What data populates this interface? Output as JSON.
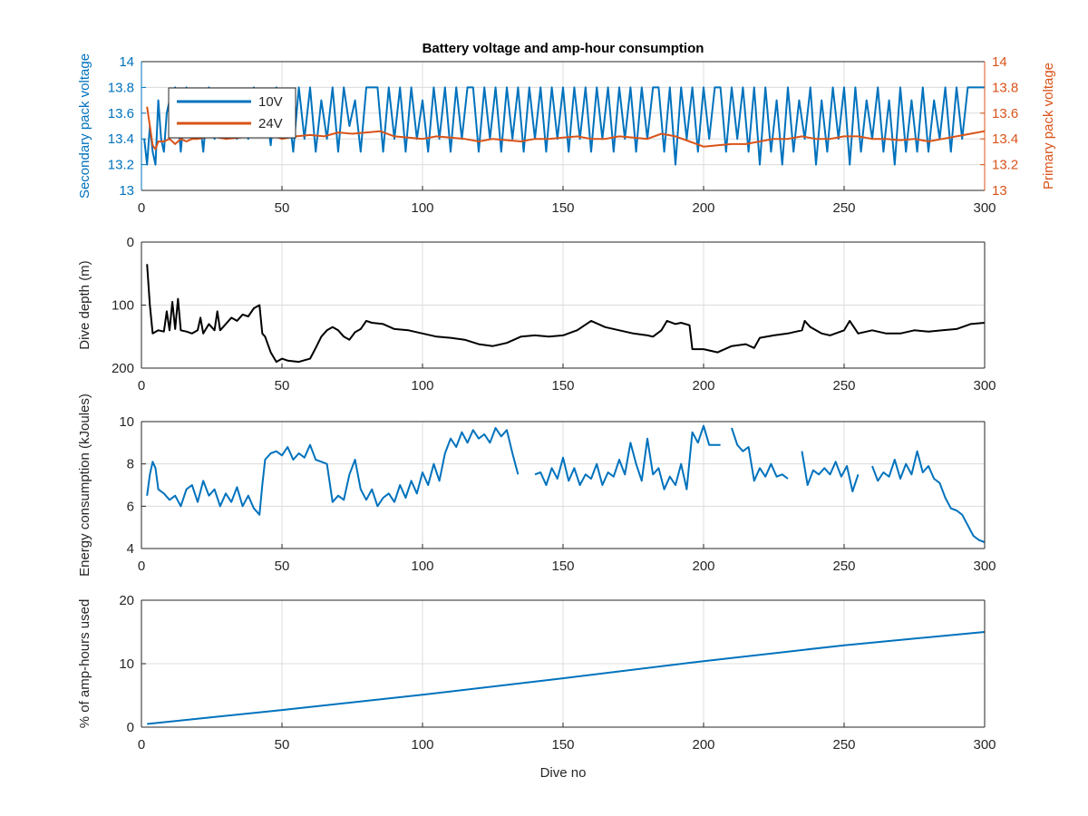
{
  "figure": {
    "title": "Battery voltage and amp-hour consumption"
  },
  "colors": {
    "blue": "#0072BD",
    "orange": "#D95319",
    "black": "#000000",
    "grid": "#dcdcdc"
  },
  "chart_data": [
    {
      "type": "line",
      "title": "Battery voltage and amp-hour consumption",
      "xlim": [
        0,
        300
      ],
      "xticks": [
        "0",
        "50",
        "100",
        "150",
        "200",
        "250",
        "300"
      ],
      "ylabel_left": "Secondary pack voltage",
      "ylabel_right": "Primary pack voltage",
      "ylim_left": [
        13,
        14
      ],
      "ylim_right": [
        13,
        14
      ],
      "yticks_left": [
        "13",
        "13.2",
        "13.4",
        "13.6",
        "13.8",
        "14"
      ],
      "yticks_right": [
        "13",
        "13.2",
        "13.4",
        "13.6",
        "13.8",
        "14"
      ],
      "legend": {
        "placement": "top-left",
        "entries": [
          "10V",
          "24V"
        ]
      },
      "grid": true,
      "series": [
        {
          "name": "10V",
          "axis": "left",
          "color": "#0072BD",
          "x": [
            1,
            2,
            3,
            4,
            5,
            6,
            7,
            8,
            9,
            10,
            12,
            14,
            16,
            18,
            20,
            22,
            24,
            26,
            28,
            30,
            32,
            34,
            36,
            38,
            40,
            42,
            44,
            46,
            48,
            50,
            52,
            54,
            56,
            58,
            60,
            62,
            64,
            66,
            68,
            70,
            72,
            74,
            76,
            78,
            80,
            82,
            84,
            86,
            88,
            90,
            92,
            94,
            96,
            98,
            100,
            102,
            104,
            106,
            108,
            110,
            112,
            114,
            116,
            118,
            120,
            122,
            124,
            126,
            128,
            130,
            132,
            134,
            136,
            138,
            140,
            142,
            144,
            146,
            148,
            150,
            152,
            154,
            156,
            158,
            160,
            162,
            164,
            166,
            168,
            170,
            172,
            174,
            176,
            178,
            180,
            182,
            184,
            186,
            188,
            190,
            192,
            194,
            196,
            198,
            200,
            202,
            204,
            206,
            208,
            210,
            212,
            214,
            216,
            218,
            220,
            222,
            224,
            226,
            228,
            230,
            232,
            234,
            236,
            238,
            240,
            242,
            244,
            246,
            248,
            250,
            252,
            254,
            256,
            258,
            260,
            262,
            264,
            266,
            268,
            270,
            272,
            274,
            276,
            278,
            280,
            282,
            284,
            286,
            288,
            290,
            292,
            294,
            296,
            298,
            300
          ],
          "values": [
            13.4,
            13.2,
            13.5,
            13.3,
            13.2,
            13.7,
            13.4,
            13.3,
            13.6,
            13.7,
            13.8,
            13.3,
            13.8,
            13.4,
            13.7,
            13.3,
            13.8,
            13.4,
            13.7,
            13.4,
            13.6,
            13.4,
            13.7,
            13.4,
            13.8,
            13.5,
            13.7,
            13.35,
            13.8,
            13.4,
            13.7,
            13.3,
            13.8,
            13.4,
            13.8,
            13.3,
            13.7,
            13.4,
            13.8,
            13.3,
            13.8,
            13.5,
            13.7,
            13.3,
            13.8,
            13.8,
            13.8,
            13.3,
            13.8,
            13.4,
            13.8,
            13.3,
            13.8,
            13.4,
            13.7,
            13.3,
            13.8,
            13.4,
            13.8,
            13.3,
            13.8,
            13.4,
            13.8,
            13.8,
            13.3,
            13.8,
            13.4,
            13.8,
            13.3,
            13.8,
            13.4,
            13.8,
            13.3,
            13.8,
            13.4,
            13.8,
            13.3,
            13.8,
            13.4,
            13.8,
            13.3,
            13.8,
            13.4,
            13.8,
            13.3,
            13.8,
            13.4,
            13.8,
            13.3,
            13.8,
            13.4,
            13.8,
            13.3,
            13.8,
            13.4,
            13.8,
            13.8,
            13.3,
            13.8,
            13.2,
            13.8,
            13.4,
            13.8,
            13.3,
            13.8,
            13.4,
            13.8,
            13.8,
            13.3,
            13.8,
            13.4,
            13.8,
            13.3,
            13.8,
            13.2,
            13.8,
            13.3,
            13.7,
            13.2,
            13.8,
            13.3,
            13.7,
            13.4,
            13.8,
            13.2,
            13.7,
            13.3,
            13.8,
            13.4,
            13.8,
            13.2,
            13.8,
            13.3,
            13.7,
            13.4,
            13.8,
            13.3,
            13.7,
            13.2,
            13.8,
            13.3,
            13.7,
            13.3,
            13.8,
            13.3,
            13.7,
            13.4,
            13.8,
            13.3,
            13.8,
            13.4,
            13.8,
            13.8,
            13.8,
            13.8
          ]
        },
        {
          "name": "24V",
          "axis": "right",
          "color": "#D95319",
          "x": [
            2,
            3,
            4,
            5,
            6,
            8,
            10,
            12,
            14,
            16,
            18,
            20,
            25,
            30,
            35,
            40,
            45,
            50,
            55,
            60,
            65,
            70,
            75,
            80,
            85,
            90,
            95,
            100,
            105,
            110,
            115,
            120,
            125,
            130,
            135,
            140,
            145,
            150,
            155,
            160,
            165,
            170,
            175,
            180,
            185,
            190,
            195,
            200,
            205,
            210,
            215,
            220,
            225,
            230,
            235,
            240,
            245,
            250,
            255,
            260,
            265,
            270,
            275,
            280,
            285,
            290,
            295,
            300
          ],
          "values": [
            13.65,
            13.5,
            13.35,
            13.32,
            13.38,
            13.38,
            13.4,
            13.36,
            13.4,
            13.38,
            13.4,
            13.4,
            13.42,
            13.4,
            13.41,
            13.42,
            13.44,
            13.4,
            13.42,
            13.43,
            13.42,
            13.45,
            13.44,
            13.45,
            13.46,
            13.42,
            13.41,
            13.4,
            13.42,
            13.41,
            13.4,
            13.38,
            13.4,
            13.39,
            13.38,
            13.4,
            13.4,
            13.41,
            13.42,
            13.4,
            13.4,
            13.42,
            13.41,
            13.4,
            13.44,
            13.42,
            13.38,
            13.34,
            13.35,
            13.36,
            13.36,
            13.38,
            13.4,
            13.4,
            13.42,
            13.4,
            13.4,
            13.42,
            13.42,
            13.4,
            13.4,
            13.39,
            13.4,
            13.38,
            13.4,
            13.42,
            13.44,
            13.46
          ]
        }
      ]
    },
    {
      "type": "line",
      "xlim": [
        0,
        300
      ],
      "xticks": [
        "0",
        "50",
        "100",
        "150",
        "200",
        "250",
        "300"
      ],
      "ylabel": "Dive depth (m)",
      "ylim": [
        200,
        0
      ],
      "y_reversed": true,
      "yticks": [
        "0",
        "100",
        "200"
      ],
      "grid": true,
      "series": [
        {
          "color": "#000000",
          "x": [
            2,
            3,
            4,
            6,
            8,
            9,
            10,
            11,
            12,
            13,
            14,
            16,
            18,
            20,
            21,
            22,
            24,
            26,
            27,
            28,
            30,
            32,
            34,
            36,
            38,
            40,
            42,
            43,
            44,
            46,
            48,
            50,
            52,
            56,
            60,
            62,
            64,
            66,
            68,
            70,
            72,
            74,
            76,
            78,
            80,
            82,
            86,
            90,
            95,
            100,
            105,
            110,
            115,
            120,
            125,
            130,
            135,
            140,
            145,
            150,
            155,
            160,
            165,
            170,
            175,
            180,
            182,
            185,
            187,
            190,
            192,
            195,
            196,
            200,
            205,
            210,
            215,
            218,
            220,
            225,
            230,
            235,
            236,
            238,
            240,
            242,
            245,
            250,
            252,
            255,
            260,
            265,
            270,
            275,
            280,
            285,
            290,
            295,
            300
          ],
          "values": [
            35,
            100,
            145,
            140,
            142,
            110,
            140,
            95,
            138,
            90,
            140,
            142,
            145,
            140,
            120,
            145,
            130,
            140,
            110,
            140,
            130,
            120,
            125,
            115,
            118,
            105,
            100,
            145,
            150,
            175,
            190,
            185,
            188,
            190,
            185,
            168,
            150,
            140,
            135,
            140,
            150,
            155,
            143,
            138,
            125,
            128,
            130,
            138,
            140,
            145,
            150,
            152,
            155,
            162,
            165,
            160,
            150,
            148,
            150,
            148,
            140,
            125,
            135,
            140,
            145,
            148,
            150,
            140,
            125,
            130,
            128,
            132,
            170,
            170,
            175,
            165,
            162,
            168,
            152,
            148,
            145,
            140,
            125,
            135,
            140,
            145,
            148,
            140,
            125,
            145,
            140,
            145,
            145,
            140,
            142,
            140,
            138,
            130,
            128
          ]
        }
      ]
    },
    {
      "type": "line",
      "xlim": [
        0,
        300
      ],
      "xticks": [
        "0",
        "50",
        "100",
        "150",
        "200",
        "250",
        "300"
      ],
      "ylabel": "Energy consumption (kJoules)",
      "ylim": [
        4,
        10
      ],
      "yticks": [
        "4",
        "6",
        "8",
        "10"
      ],
      "grid": true,
      "series": [
        {
          "color": "#0072BD",
          "x": [
            2,
            3,
            4,
            5,
            6,
            8,
            10,
            12,
            14,
            16,
            18,
            20,
            22,
            24,
            26,
            28,
            30,
            32,
            34,
            36,
            38,
            40,
            42,
            43,
            44,
            46,
            48,
            50,
            52,
            54,
            56,
            58,
            60,
            62,
            64,
            66,
            68,
            70,
            72,
            74,
            76,
            78,
            80,
            82,
            84,
            86,
            88,
            90,
            92,
            94,
            96,
            98,
            100,
            102,
            104,
            106,
            108,
            110,
            112,
            114,
            116,
            118,
            120,
            122,
            124,
            126,
            128,
            130,
            132,
            134,
            null,
            140,
            142,
            144,
            146,
            148,
            150,
            152,
            154,
            156,
            158,
            160,
            162,
            164,
            166,
            168,
            170,
            172,
            174,
            176,
            178,
            180,
            182,
            184,
            186,
            188,
            190,
            192,
            194,
            196,
            198,
            200,
            202,
            204,
            206,
            null,
            210,
            212,
            214,
            216,
            218,
            220,
            222,
            224,
            226,
            228,
            230,
            null,
            235,
            237,
            239,
            241,
            243,
            245,
            247,
            249,
            251,
            253,
            255,
            null,
            260,
            262,
            264,
            266,
            268,
            270,
            272,
            274,
            276,
            278,
            280,
            282,
            284,
            286,
            288,
            290,
            292,
            294,
            296,
            298,
            300
          ],
          "values": [
            6.5,
            7.5,
            8.1,
            7.8,
            6.8,
            6.6,
            6.3,
            6.5,
            6.0,
            6.8,
            7.0,
            6.2,
            7.2,
            6.5,
            6.8,
            6.0,
            6.6,
            6.2,
            6.9,
            6.0,
            6.5,
            5.9,
            5.6,
            7.0,
            8.2,
            8.5,
            8.6,
            8.4,
            8.8,
            8.2,
            8.5,
            8.3,
            8.9,
            8.2,
            8.1,
            8.0,
            6.2,
            6.5,
            6.3,
            7.5,
            8.2,
            6.8,
            6.3,
            6.8,
            6.0,
            6.4,
            6.6,
            6.2,
            7.0,
            6.4,
            7.2,
            6.6,
            7.6,
            7.0,
            8.0,
            7.2,
            8.5,
            9.2,
            8.8,
            9.5,
            9.0,
            9.6,
            9.2,
            9.4,
            9.0,
            9.7,
            9.3,
            9.6,
            8.5,
            7.5,
            null,
            7.5,
            7.6,
            7.0,
            7.8,
            7.3,
            8.3,
            7.2,
            7.8,
            7.0,
            7.5,
            7.3,
            8.0,
            7.0,
            7.6,
            7.4,
            8.2,
            7.5,
            9.0,
            8.0,
            7.2,
            9.2,
            7.5,
            7.8,
            6.8,
            7.4,
            7.0,
            8.0,
            6.8,
            9.5,
            9.0,
            9.8,
            8.9,
            8.9,
            8.9,
            null,
            9.7,
            8.9,
            8.6,
            8.8,
            7.2,
            7.8,
            7.4,
            8.0,
            7.4,
            7.5,
            7.3,
            null,
            8.6,
            7.0,
            7.7,
            7.5,
            7.8,
            7.5,
            8.1,
            7.4,
            7.9,
            6.7,
            7.5,
            null,
            7.9,
            7.2,
            7.6,
            7.4,
            8.2,
            7.3,
            8.0,
            7.5,
            8.6,
            7.6,
            7.9,
            7.3,
            7.1,
            6.4,
            5.9,
            5.8,
            5.6,
            5.1,
            4.6,
            4.4,
            4.3
          ]
        }
      ]
    },
    {
      "type": "line",
      "xlim": [
        0,
        300
      ],
      "xticks": [
        "0",
        "50",
        "100",
        "150",
        "200",
        "250",
        "300"
      ],
      "xlabel": "Dive no",
      "ylabel": "% of amp-hours used",
      "ylim": [
        0,
        20
      ],
      "yticks": [
        "0",
        "10",
        "20"
      ],
      "grid": true,
      "series": [
        {
          "color": "#0072BD",
          "x": [
            2,
            50,
            100,
            150,
            200,
            250,
            300
          ],
          "values": [
            0.5,
            2.7,
            5.1,
            7.7,
            10.4,
            12.9,
            15.0
          ]
        }
      ]
    }
  ]
}
